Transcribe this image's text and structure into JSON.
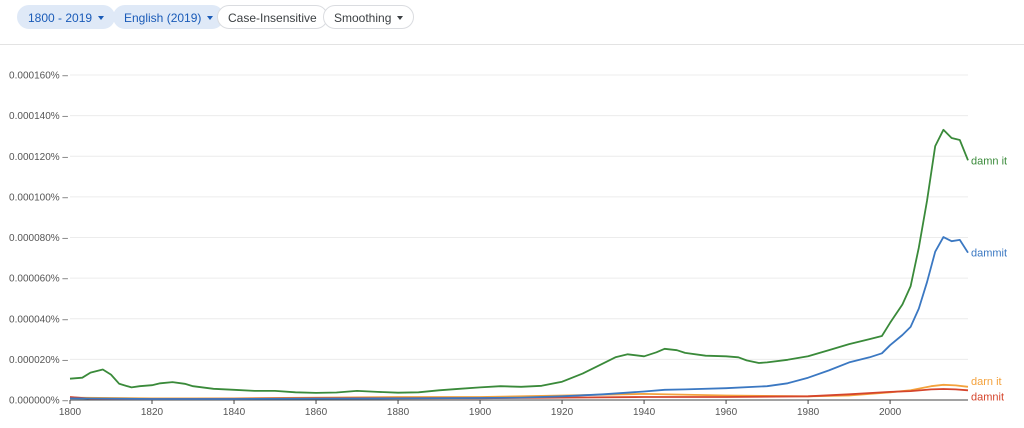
{
  "toolbar": {
    "year_range": "1800 - 2019",
    "corpus": "English (2019)",
    "case_option": "Case-Insensitive",
    "smoothing": "Smoothing",
    "chevron_icon": "chevron-down-icon"
  },
  "chart_data": {
    "type": "line",
    "title": "",
    "xlabel": "",
    "ylabel": "",
    "xlim": [
      1800,
      2019
    ],
    "ylim": [
      0,
      0.00016
    ],
    "x_ticks": [
      1800,
      1820,
      1840,
      1860,
      1880,
      1900,
      1920,
      1940,
      1960,
      1980,
      2000
    ],
    "y_ticks": [
      {
        "value": 0,
        "label": "0.000000%"
      },
      {
        "value": 2e-05,
        "label": "0.000020%"
      },
      {
        "value": 4e-05,
        "label": "0.000040%"
      },
      {
        "value": 6e-05,
        "label": "0.000060%"
      },
      {
        "value": 8e-05,
        "label": "0.000080%"
      },
      {
        "value": 0.0001,
        "label": "0.000100%"
      },
      {
        "value": 0.00012,
        "label": "0.000120%"
      },
      {
        "value": 0.00014,
        "label": "0.000140%"
      },
      {
        "value": 0.00016,
        "label": "0.000160%"
      }
    ],
    "grid": true,
    "series": [
      {
        "name": "damn it",
        "color": "#3a8a3a",
        "x": [
          1800,
          1803,
          1805,
          1808,
          1810,
          1812,
          1815,
          1817,
          1820,
          1822,
          1825,
          1828,
          1830,
          1835,
          1840,
          1845,
          1850,
          1855,
          1860,
          1865,
          1870,
          1875,
          1880,
          1885,
          1890,
          1895,
          1900,
          1905,
          1910,
          1915,
          1920,
          1925,
          1930,
          1933,
          1936,
          1940,
          1943,
          1945,
          1948,
          1950,
          1955,
          1960,
          1963,
          1965,
          1968,
          1970,
          1975,
          1980,
          1985,
          1990,
          1995,
          1998,
          2000,
          2003,
          2005,
          2007,
          2009,
          2011,
          2013,
          2015,
          2017,
          2019
        ],
        "values": [
          1.05e-05,
          1.1e-05,
          1.35e-05,
          1.5e-05,
          1.25e-05,
          8e-06,
          6.2e-06,
          6.8e-06,
          7.3e-06,
          8.2e-06,
          8.8e-06,
          8e-06,
          6.8e-06,
          5.5e-06,
          5e-06,
          4.5e-06,
          4.5e-06,
          3.8e-06,
          3.5e-06,
          3.7e-06,
          4.5e-06,
          4e-06,
          3.6e-06,
          3.8e-06,
          4.8e-06,
          5.5e-06,
          6.2e-06,
          6.8e-06,
          6.5e-06,
          7e-06,
          9e-06,
          1.3e-05,
          1.8e-05,
          2.1e-05,
          2.25e-05,
          2.15e-05,
          2.35e-05,
          2.52e-05,
          2.45e-05,
          2.32e-05,
          2.18e-05,
          2.15e-05,
          2.1e-05,
          1.95e-05,
          1.82e-05,
          1.85e-05,
          1.98e-05,
          2.15e-05,
          2.45e-05,
          2.75e-05,
          3e-05,
          3.15e-05,
          3.8e-05,
          4.7e-05,
          5.6e-05,
          7.5e-05,
          9.8e-05,
          0.000125,
          0.000133,
          0.000129,
          0.000128,
          0.000118
        ]
      },
      {
        "name": "dammit",
        "color": "#3b78c2",
        "x": [
          1800,
          1820,
          1840,
          1860,
          1880,
          1900,
          1910,
          1920,
          1930,
          1940,
          1945,
          1950,
          1960,
          1970,
          1975,
          1980,
          1985,
          1990,
          1995,
          1998,
          2000,
          2003,
          2005,
          2007,
          2009,
          2011,
          2013,
          2015,
          2017,
          2019
        ],
        "values": [
          8e-07,
          5e-07,
          5e-07,
          7e-07,
          8e-07,
          1e-06,
          1.2e-06,
          1.8e-06,
          2.8e-06,
          4.2e-06,
          5e-06,
          5.2e-06,
          5.8e-06,
          6.8e-06,
          8.2e-06,
          1.1e-05,
          1.45e-05,
          1.85e-05,
          2.1e-05,
          2.3e-05,
          2.7e-05,
          3.2e-05,
          3.6e-05,
          4.5e-05,
          5.8e-05,
          7.3e-05,
          8.02e-05,
          7.82e-05,
          7.88e-05,
          7.25e-05
        ]
      },
      {
        "name": "darn it",
        "color": "#f4a23c",
        "x": [
          1800,
          1820,
          1840,
          1860,
          1880,
          1900,
          1920,
          1940,
          1960,
          1980,
          1990,
          2000,
          2005,
          2010,
          2013,
          2016,
          2019
        ],
        "values": [
          1.2e-06,
          8e-07,
          8e-07,
          1.2e-06,
          1.5e-06,
          1.5e-06,
          2.2e-06,
          3e-06,
          2.2e-06,
          1.8e-06,
          2.2e-06,
          3.8e-06,
          4.8e-06,
          6.8e-06,
          7.5e-06,
          7.2e-06,
          6.5e-06
        ]
      },
      {
        "name": "damnit",
        "color": "#d5452c",
        "x": [
          1800,
          1802,
          1805,
          1820,
          1840,
          1860,
          1880,
          1900,
          1920,
          1940,
          1960,
          1980,
          1990,
          2000,
          2005,
          2010,
          2013,
          2016,
          2019
        ],
        "values": [
          1.5e-06,
          1.2e-06,
          6e-07,
          5e-07,
          6e-07,
          9e-07,
          9e-07,
          9e-07,
          1.2e-06,
          1.5e-06,
          1.5e-06,
          1.8e-06,
          2.8e-06,
          4e-06,
          4.4e-06,
          5.2e-06,
          5.4e-06,
          5.2e-06,
          4.8e-06
        ]
      }
    ]
  }
}
